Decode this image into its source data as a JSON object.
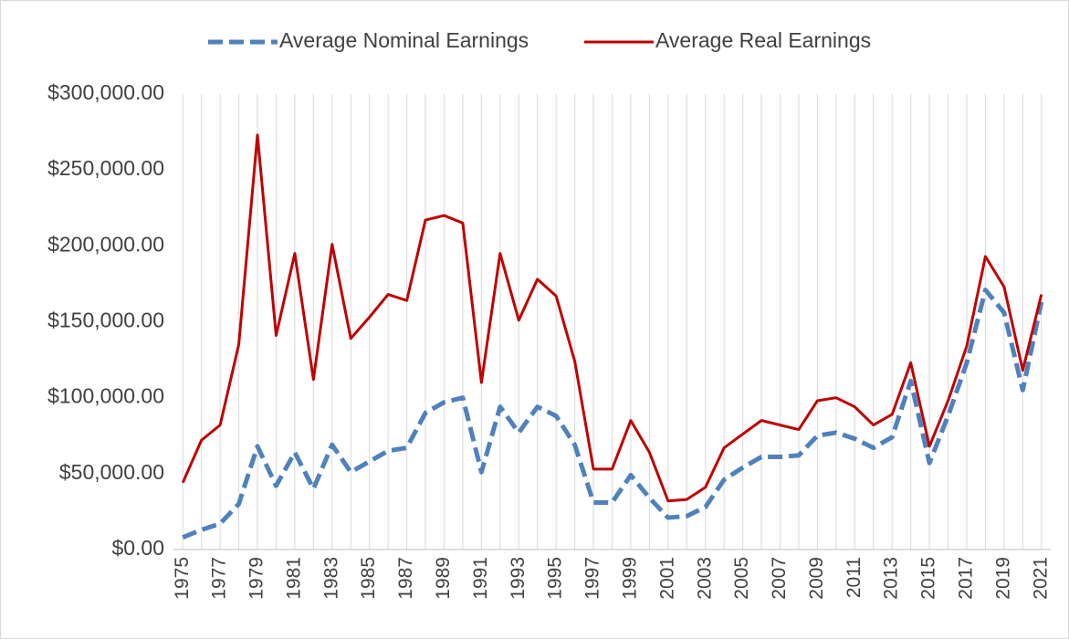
{
  "chart_data": {
    "type": "line",
    "categories": [
      "1975",
      null,
      "1977",
      null,
      "1979",
      null,
      "1981",
      null,
      "1983",
      null,
      "1985",
      null,
      "1987",
      null,
      "1989",
      null,
      "1991",
      null,
      "1993",
      null,
      "1995",
      null,
      "1997",
      null,
      "1999",
      null,
      "2001",
      null,
      "2003",
      null,
      "2005",
      null,
      "2007",
      null,
      "2009",
      null,
      "2011",
      null,
      "2013",
      null,
      "2015",
      null,
      "2017",
      null,
      "2019",
      null,
      "2021"
    ],
    "series": [
      {
        "name": "Average Nominal Earnings",
        "color": "#4f81bd",
        "dashed": true,
        "values": [
          8000,
          13000,
          17000,
          30000,
          68000,
          42000,
          64000,
          40000,
          69000,
          51000,
          58000,
          65000,
          67000,
          90000,
          97000,
          100000,
          51000,
          94000,
          77000,
          94000,
          88000,
          69000,
          31000,
          31000,
          49000,
          34000,
          21000,
          22000,
          28000,
          46000,
          54000,
          61000,
          61000,
          62000,
          75000,
          77000,
          73000,
          67000,
          74000,
          111000,
          57000,
          88000,
          123000,
          171000,
          156000,
          105000,
          163000
        ]
      },
      {
        "name": "Average Real Earnings",
        "color": "#c00000",
        "dashed": false,
        "values": [
          44000,
          72000,
          82000,
          135000,
          273000,
          141000,
          195000,
          112000,
          201000,
          139000,
          153000,
          168000,
          164000,
          217000,
          220000,
          215000,
          110000,
          195000,
          151000,
          178000,
          167000,
          124000,
          53000,
          53000,
          85000,
          64000,
          32000,
          33000,
          41000,
          67000,
          76000,
          85000,
          82000,
          79000,
          98000,
          100000,
          94000,
          82000,
          89000,
          123000,
          68000,
          98000,
          134000,
          193000,
          173000,
          118000,
          168000
        ]
      }
    ],
    "ylim": [
      0,
      300000
    ],
    "yticks": [
      {
        "value": 0,
        "label": "$0.00"
      },
      {
        "value": 50000,
        "label": "$50,000.00"
      },
      {
        "value": 100000,
        "label": "$100,000.00"
      },
      {
        "value": 150000,
        "label": "$150,000.00"
      },
      {
        "value": 200000,
        "label": "$200,000.00"
      },
      {
        "value": 250000,
        "label": "$250,000.00"
      },
      {
        "value": 300000,
        "label": "$300,000.00"
      }
    ],
    "grid": "vertical",
    "legend": "top"
  }
}
